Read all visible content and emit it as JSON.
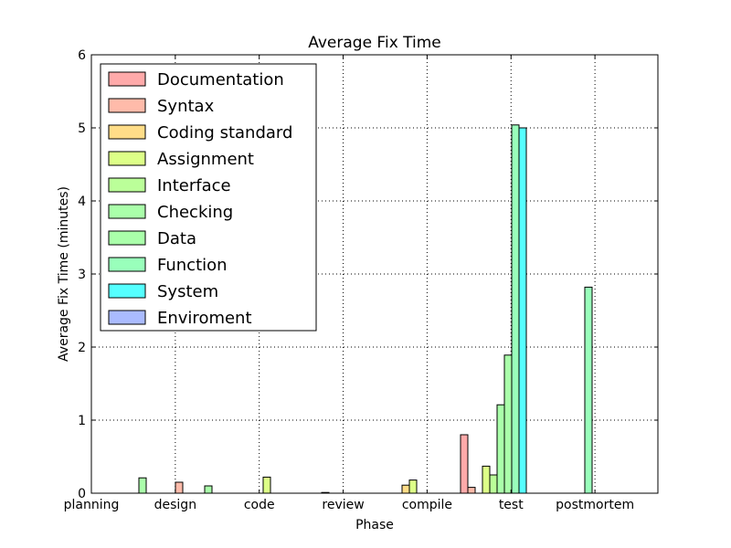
{
  "chart_data": {
    "type": "bar",
    "title": "Average Fix Time",
    "xlabel": "Phase",
    "ylabel": "Average Fix Time (minutes)",
    "ylim": [
      0,
      6
    ],
    "yticks": [
      "0",
      "1",
      "2",
      "3",
      "4",
      "5",
      "6"
    ],
    "grid": true,
    "legend_position": "top-left",
    "categories": [
      "planning",
      "design",
      "code",
      "review",
      "compile",
      "test",
      "postmortem"
    ],
    "series": [
      {
        "name": "Documentation",
        "color": "#ffaaaa",
        "values": [
          0,
          0,
          0,
          0,
          0,
          0.8,
          0
        ]
      },
      {
        "name": "Syntax",
        "color": "#ffbbaa",
        "values": [
          0,
          0.15,
          0,
          0.01,
          0,
          0.08,
          0
        ]
      },
      {
        "name": "Coding standard",
        "color": "#ffdd88",
        "values": [
          0,
          0,
          0,
          0,
          0.11,
          0,
          0
        ]
      },
      {
        "name": "Assignment",
        "color": "#ddff88",
        "values": [
          0,
          0,
          0.22,
          0,
          0.18,
          0.37,
          0
        ]
      },
      {
        "name": "Interface",
        "color": "#bbff99",
        "values": [
          0,
          0,
          0,
          0,
          0,
          0.25,
          0
        ]
      },
      {
        "name": "Checking",
        "color": "#aaffaa",
        "values": [
          0,
          0.1,
          0,
          0,
          0,
          1.21,
          0
        ]
      },
      {
        "name": "Data",
        "color": "#aaffaa",
        "values": [
          0.21,
          0,
          0,
          0,
          0,
          1.89,
          0
        ]
      },
      {
        "name": "Function",
        "color": "#99ffbb",
        "values": [
          0,
          0,
          0,
          0,
          0,
          5.04,
          2.82
        ]
      },
      {
        "name": "System",
        "color": "#55ffff",
        "values": [
          0,
          0,
          0,
          0,
          0,
          5.0,
          0
        ]
      },
      {
        "name": "Enviroment",
        "color": "#aabbff",
        "values": [
          0,
          0,
          0,
          0,
          0,
          0,
          0
        ]
      }
    ]
  }
}
